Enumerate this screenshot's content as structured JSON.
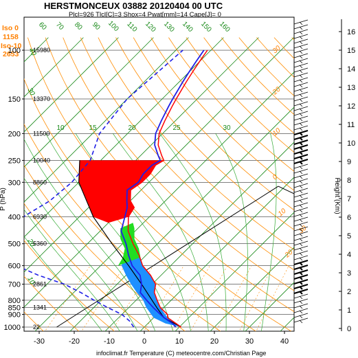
{
  "title": "HERSTMONCEUX 03882 20120404 00 UTC",
  "subtitle": "Plcl=926 Tlcl[C]=3 Shox=4 Pwat[mm]=14 Cape[J]= 0",
  "freezing_levels": [
    "Iso 0",
    "1158",
    "Iso-10",
    "2653"
  ],
  "footer": "infoclimat.fr Temperature (C) meteocentre.com/Christian Page",
  "colors": {
    "temperature": "#ff0000",
    "dewpoint": "#1e1ee6",
    "dewpoint_dashed": "#1e1ee6",
    "negative_area": "#ff0000",
    "cape_area": "#1e90ff",
    "green_area": "#22dd22",
    "dry_adiabat": "#ff8c00",
    "isotherm": "#1a8a1a",
    "freezing_label": "#ff8000"
  },
  "chart_data": {
    "type": "line",
    "title": "HERSTMONCEUX 03882 20120404 00 UTC",
    "x_axis_label": "Temperature (C)",
    "xlim": [
      -35,
      45
    ],
    "xticks": [
      -30,
      -20,
      -10,
      0,
      10,
      20,
      30,
      40
    ],
    "left_axis_label": "P (hPa)",
    "pressure_ticks": [
      100,
      150,
      200,
      250,
      300,
      400,
      500,
      600,
      700,
      800,
      850,
      900,
      1000
    ],
    "height_labels": [
      {
        "p": 100,
        "z": "15980"
      },
      {
        "p": 150,
        "z": "13370"
      },
      {
        "p": 200,
        "z": "11500"
      },
      {
        "p": 250,
        "z": "10040"
      },
      {
        "p": 300,
        "z": "8860"
      },
      {
        "p": 400,
        "z": "6930"
      },
      {
        "p": 500,
        "z": "5360"
      },
      {
        "p": 700,
        "z": "2861"
      },
      {
        "p": 850,
        "z": "1341"
      },
      {
        "p": 1000,
        "z": "22"
      }
    ],
    "right_axis_label": "Height (Km)",
    "right_ticks": [
      "0",
      "1",
      "2",
      "3",
      "4",
      "5",
      "6",
      "7",
      "8",
      "9",
      "10",
      "11",
      "12",
      "13",
      "14",
      "15",
      "16"
    ],
    "isotherm_labels": [
      "10",
      "15",
      "20",
      "25",
      "30"
    ],
    "upper_temperature_labels": [
      "60",
      "70",
      "80",
      "90",
      "100",
      "110",
      "120",
      "130",
      "140",
      "150",
      "160"
    ],
    "dry_adiabat_labels": [
      "30",
      "20",
      "10",
      "0",
      "10",
      "20",
      "30"
    ],
    "mixing_ratio_labels": [
      "40",
      "30",
      "20",
      "10"
    ],
    "series": [
      {
        "name": "Temperature",
        "points": [
          [
            1000,
            10.5
          ],
          [
            970,
            8
          ],
          [
            925,
            4
          ],
          [
            900,
            3
          ],
          [
            850,
            -1
          ],
          [
            800,
            -4
          ],
          [
            750,
            -7
          ],
          [
            700,
            -9
          ],
          [
            650,
            -13
          ],
          [
            600,
            -18
          ],
          [
            550,
            -22
          ],
          [
            500,
            -27
          ],
          [
            450,
            -32
          ],
          [
            400,
            -36
          ],
          [
            370,
            -37
          ],
          [
            350,
            -40
          ],
          [
            320,
            -43
          ],
          [
            300,
            -42
          ],
          [
            280,
            -42
          ],
          [
            260,
            -43
          ],
          [
            250,
            -42
          ],
          [
            240,
            -44
          ],
          [
            220,
            -48
          ],
          [
            200,
            -51
          ],
          [
            180,
            -53
          ],
          [
            160,
            -55
          ],
          [
            150,
            -56
          ],
          [
            130,
            -58
          ],
          [
            120,
            -59
          ],
          [
            110,
            -60
          ],
          [
            100,
            -61
          ]
        ]
      },
      {
        "name": "Dewpoint",
        "points": [
          [
            1000,
            9
          ],
          [
            970,
            7
          ],
          [
            925,
            3
          ],
          [
            900,
            1
          ],
          [
            850,
            -3
          ],
          [
            800,
            -7
          ],
          [
            750,
            -11
          ],
          [
            700,
            -13
          ],
          [
            650,
            -16
          ],
          [
            600,
            -21
          ],
          [
            550,
            -25
          ],
          [
            500,
            -29
          ],
          [
            450,
            -34
          ],
          [
            400,
            -37
          ],
          [
            370,
            -39
          ],
          [
            350,
            -41
          ],
          [
            320,
            -44
          ],
          [
            300,
            -43
          ],
          [
            280,
            -44
          ],
          [
            260,
            -44
          ],
          [
            250,
            -43
          ],
          [
            240,
            -45
          ],
          [
            220,
            -49
          ],
          [
            200,
            -52
          ],
          [
            180,
            -54
          ],
          [
            160,
            -56
          ],
          [
            150,
            -57
          ],
          [
            130,
            -59
          ],
          [
            120,
            -60
          ],
          [
            110,
            -61
          ],
          [
            100,
            -62
          ]
        ]
      },
      {
        "name": "Dewpoint (dashed)",
        "points": [
          [
            1000,
            -3
          ],
          [
            950,
            -6
          ],
          [
            900,
            -10
          ],
          [
            850,
            -16
          ],
          [
            800,
            -22
          ],
          [
            750,
            -28
          ],
          [
            700,
            -35
          ],
          [
            650,
            -45
          ],
          [
            600,
            -54
          ],
          [
            550,
            -58
          ],
          [
            500,
            -62
          ],
          [
            450,
            -65
          ],
          [
            400,
            -66
          ],
          [
            350,
            -63
          ],
          [
            300,
            -62
          ],
          [
            250,
            -63
          ],
          [
            200,
            -68
          ],
          [
            150,
            -70
          ],
          [
            100,
            -68
          ]
        ]
      }
    ]
  }
}
